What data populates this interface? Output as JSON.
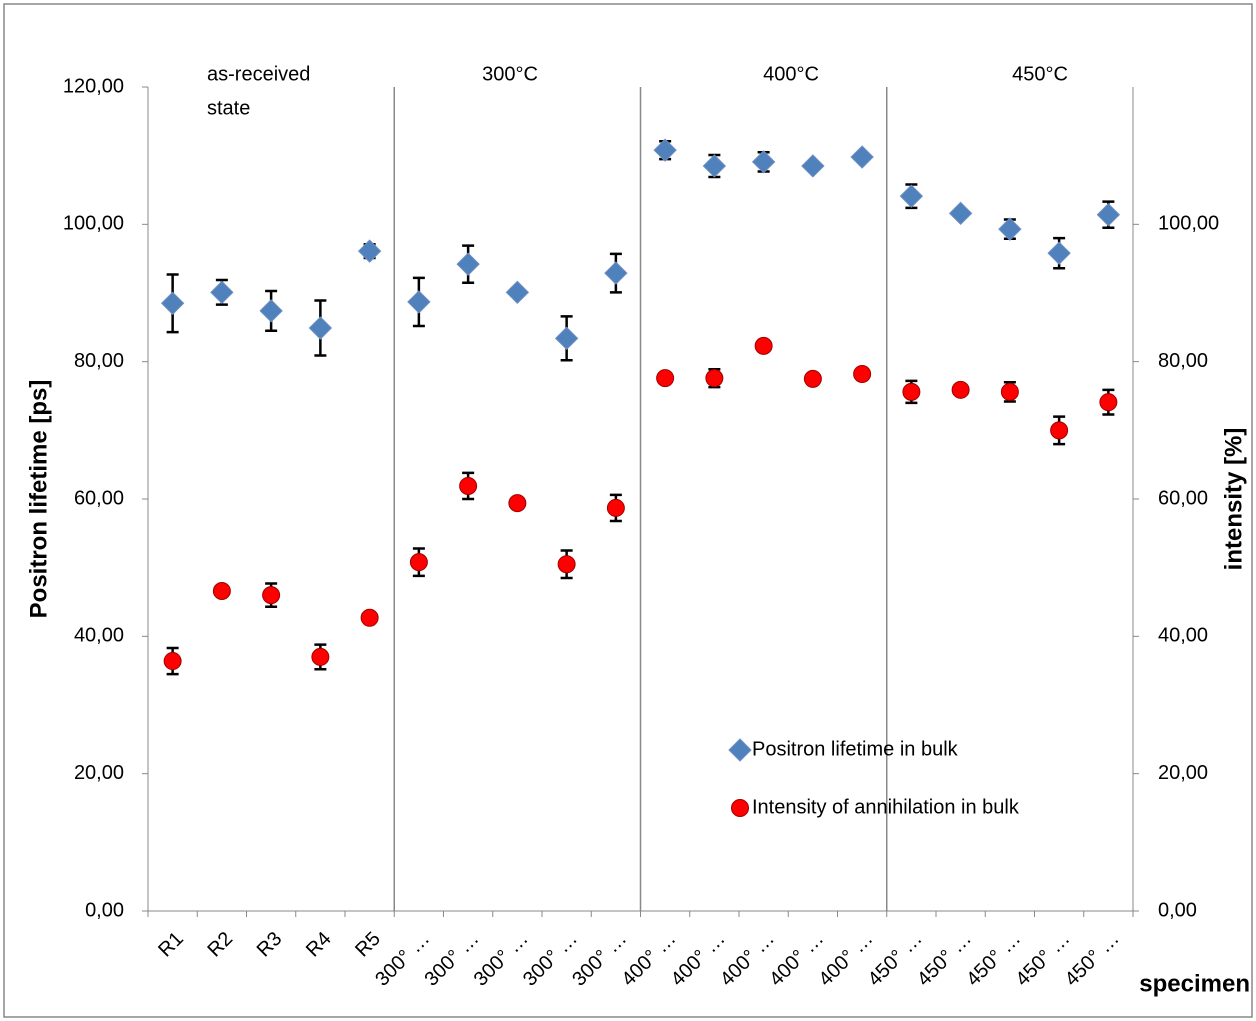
{
  "chart_data": {
    "type": "scatter",
    "y_label": "Positron lifetime [ps]",
    "y2_label": "intensity [%]",
    "x_label": "specimen",
    "categories": [
      "R1",
      "R2",
      "R3",
      "R4",
      "R5",
      "300° …",
      "300° …",
      "300° …",
      "300° …",
      "300° …",
      "400° …",
      "400° …",
      "400° …",
      "400° …",
      "400° …",
      "450° …",
      "450° …",
      "450° …",
      "450° …",
      "450° …"
    ],
    "annotations": [
      [
        "as-received",
        "state"
      ],
      [
        "300°C"
      ],
      [
        "400°C"
      ],
      [
        "450°C"
      ]
    ],
    "series": [
      {
        "name": "Positron lifetime in bulk",
        "color": "#4f81bd",
        "marker": "diamond",
        "values": [
          88.5,
          90.1,
          87.4,
          84.9,
          96.1,
          88.7,
          94.2,
          90.1,
          83.4,
          92.9,
          110.8,
          108.5,
          109.1,
          108.5,
          109.8,
          104.1,
          101.6,
          99.3,
          95.8,
          101.4
        ],
        "errors": [
          4.2,
          1.8,
          2.9,
          4.0,
          1.0,
          3.5,
          2.7,
          null,
          3.2,
          2.8,
          1.3,
          1.6,
          1.4,
          null,
          null,
          1.7,
          null,
          1.4,
          2.2,
          1.9
        ]
      },
      {
        "name": "Intensity of annihilation in bulk",
        "color": "#ff0000",
        "marker": "circle",
        "axis": "y2",
        "values": [
          36.4,
          46.6,
          46.0,
          37.0,
          42.7,
          50.8,
          61.9,
          59.4,
          50.5,
          58.7,
          77.6,
          77.6,
          82.3,
          77.5,
          78.2,
          75.6,
          75.9,
          75.6,
          70.0,
          74.1
        ],
        "errors": [
          1.9,
          null,
          1.7,
          1.8,
          null,
          2.0,
          1.9,
          null,
          2.0,
          1.9,
          null,
          1.3,
          null,
          null,
          null,
          1.6,
          null,
          1.4,
          2.0,
          1.8
        ]
      }
    ],
    "ylim": [
      0,
      120
    ],
    "yticks": [
      {
        "value": 0,
        "label": "0,00"
      },
      {
        "value": 20,
        "label": "20,00"
      },
      {
        "value": 40,
        "label": "40,00"
      },
      {
        "value": 60,
        "label": "60,00"
      },
      {
        "value": 80,
        "label": "80,00"
      },
      {
        "value": 100,
        "label": "100,00"
      },
      {
        "value": 120,
        "label": "120,00"
      }
    ],
    "y2lim": [
      0,
      120
    ],
    "y2ticks": [
      {
        "value": 0,
        "label": "0,00"
      },
      {
        "value": 20,
        "label": "20,00"
      },
      {
        "value": 40,
        "label": "40,00"
      },
      {
        "value": 60,
        "label": "60,00"
      },
      {
        "value": 80,
        "label": "80,00"
      },
      {
        "value": 100,
        "label": "100,00"
      }
    ],
    "grid": false
  }
}
